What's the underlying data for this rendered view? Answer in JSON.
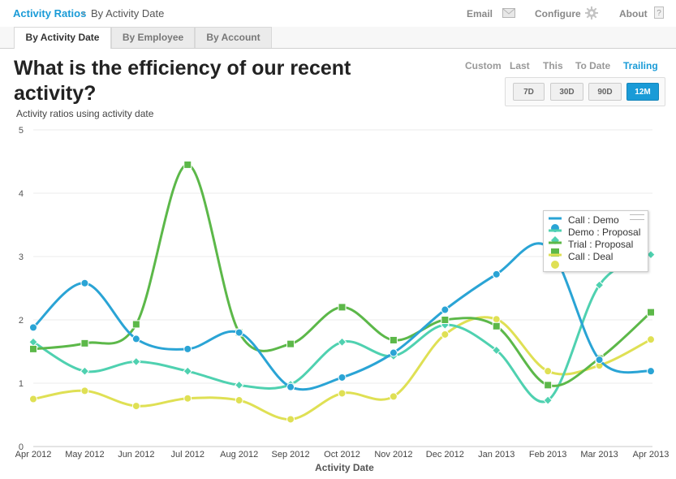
{
  "breadcrumb": {
    "root": "Activity Ratios",
    "separator": "›",
    "current": "By Activity Date"
  },
  "nav": {
    "email": "Email",
    "configure": "Configure",
    "about": "About"
  },
  "tabs": [
    {
      "label": "By Activity Date",
      "active": true
    },
    {
      "label": "By Employee",
      "active": false
    },
    {
      "label": "By Account",
      "active": false
    }
  ],
  "title": "What is the efficiency of our recent activity?",
  "subtitle": "Activity ratios using activity date",
  "range_links": [
    "Custom",
    "Last",
    "This",
    "To Date",
    "Trailing"
  ],
  "range_active": "Trailing",
  "periods": [
    "7D",
    "30D",
    "90D",
    "12M"
  ],
  "period_active": "12M",
  "colors": {
    "accent": "#1a9bd7"
  },
  "chart_data": {
    "type": "line",
    "xlabel": "Activity Date",
    "ylabel": "",
    "ylim": [
      0,
      5
    ],
    "yticks": [
      0,
      1,
      2,
      3,
      4,
      5
    ],
    "grid": true,
    "legend_position": "right",
    "categories": [
      "Apr 2012",
      "May 2012",
      "Jun 2012",
      "Jul 2012",
      "Aug 2012",
      "Sep 2012",
      "Oct 2012",
      "Nov 2012",
      "Dec 2012",
      "Jan 2013",
      "Feb 2013",
      "Mar 2013",
      "Apr 2013"
    ],
    "series": [
      {
        "name": "Call : Demo",
        "color": "#2aa4d5",
        "marker": "circle",
        "values": [
          1.88,
          2.58,
          1.7,
          1.54,
          1.8,
          0.94,
          1.09,
          1.48,
          2.16,
          2.72,
          3.15,
          1.37,
          1.19
        ]
      },
      {
        "name": "Demo : Proposal",
        "color": "#4fd1b0",
        "marker": "diamond",
        "values": [
          1.65,
          1.19,
          1.34,
          1.19,
          0.97,
          0.98,
          1.65,
          1.43,
          1.92,
          1.52,
          0.73,
          2.55,
          3.03
        ]
      },
      {
        "name": "Trial : Proposal",
        "color": "#5cb849",
        "marker": "square",
        "values": [
          1.54,
          1.63,
          1.93,
          4.45,
          1.8,
          1.62,
          2.2,
          1.68,
          2.0,
          1.9,
          0.97,
          1.39,
          2.12
        ]
      },
      {
        "name": "Call : Deal",
        "color": "#dfe054",
        "marker": "circle",
        "values": [
          0.75,
          0.88,
          0.64,
          0.76,
          0.73,
          0.43,
          0.84,
          0.79,
          1.77,
          2.01,
          1.19,
          1.28,
          1.69
        ]
      }
    ]
  }
}
